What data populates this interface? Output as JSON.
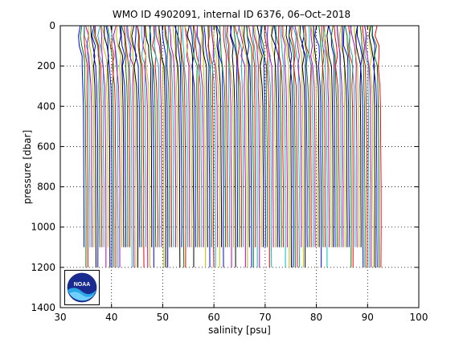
{
  "chart_data": {
    "type": "line",
    "title": "WMO ID 4902091, internal ID 6376, 06–Oct–2018",
    "xlabel": "salinity [psu]",
    "ylabel": "pressure [dbar]",
    "xlim": [
      30,
      100
    ],
    "ylim": [
      0,
      1400
    ],
    "y_reversed": true,
    "xticks": [
      "30",
      "40",
      "50",
      "60",
      "70",
      "80",
      "90",
      "100"
    ],
    "yticks": [
      "0",
      "200",
      "400",
      "600",
      "800",
      "1000",
      "1200",
      "1400"
    ],
    "grid": "dotted",
    "description": "waterfall of successive salinity profiles, each offset to the right",
    "series_colors": [
      "#0000ff",
      "#008000",
      "#ff0000",
      "#00bfbf",
      "#bf00bf",
      "#bfbf00",
      "#000000"
    ],
    "profile_offsets": {
      "first": 34.0,
      "last": 92.0,
      "count": 150
    },
    "profile_shape": {
      "pressure": [
        0,
        50,
        100,
        150,
        200,
        300,
        400,
        600,
        800,
        1000,
        1200
      ],
      "salinity_anomaly": [
        -0.4,
        -0.3,
        -0.1,
        0.1,
        0.25,
        0.4,
        0.5,
        0.55,
        0.6,
        0.62,
        0.64
      ]
    },
    "max_pressure_range": [
      1100,
      1200
    ]
  },
  "logo": {
    "text": "NOAA"
  }
}
